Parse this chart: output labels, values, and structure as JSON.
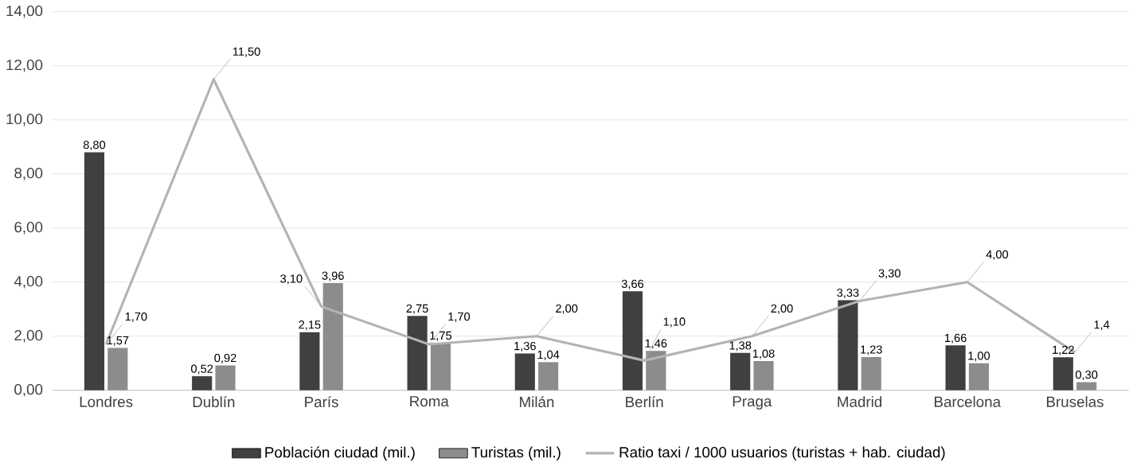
{
  "chart_data": {
    "type": "bar",
    "categories": [
      "Londres",
      "Dublín",
      "París",
      "Roma",
      "Milán",
      "Berlín",
      "Praga",
      "Madrid",
      "Barcelona",
      "Bruselas"
    ],
    "series": [
      {
        "name": "Población ciudad (mil.)",
        "color": "#404040",
        "values": [
          8.8,
          0.52,
          2.15,
          2.75,
          1.36,
          3.66,
          1.38,
          3.33,
          1.66,
          1.22
        ],
        "value_labels": [
          "8,80",
          "0,52",
          "2,15",
          "2,75",
          "1,36",
          "3,66",
          "1,38",
          "3,33",
          "1,66",
          "1,22"
        ]
      },
      {
        "name": "Turistas (mil.)",
        "color": "#8c8c8c",
        "values": [
          1.57,
          0.92,
          3.96,
          1.75,
          1.04,
          1.46,
          1.08,
          1.23,
          1.0,
          0.3
        ],
        "value_labels": [
          "1,57",
          "0,92",
          "3,96",
          "1,75",
          "1,04",
          "1,46",
          "1,08",
          "1,23",
          "1,00",
          "0,30"
        ]
      },
      {
        "name": "Ratio taxi / 1000 usuarios (turistas + hab. ciudad)",
        "type": "line",
        "color": "#b3b3b3",
        "values": [
          1.7,
          11.5,
          3.1,
          1.7,
          2.0,
          1.1,
          2.0,
          3.3,
          4.0,
          1.4
        ],
        "value_labels": [
          "1,70",
          "11,50",
          "3,10",
          "1,70",
          "2,00",
          "1,10",
          "2,00",
          "3,30",
          "4,00",
          "1,4"
        ]
      }
    ],
    "ylim": [
      0,
      14
    ],
    "yticks": [
      {
        "value": 0,
        "label": "0,00"
      },
      {
        "value": 2,
        "label": "2,00"
      },
      {
        "value": 4,
        "label": "4,00"
      },
      {
        "value": 6,
        "label": "6,00"
      },
      {
        "value": 8,
        "label": "8,00"
      },
      {
        "value": 10,
        "label": "10,00"
      },
      {
        "value": 12,
        "label": "12,00"
      },
      {
        "value": 14,
        "label": "14,00"
      }
    ],
    "grid": "y",
    "legend": "bottom"
  }
}
